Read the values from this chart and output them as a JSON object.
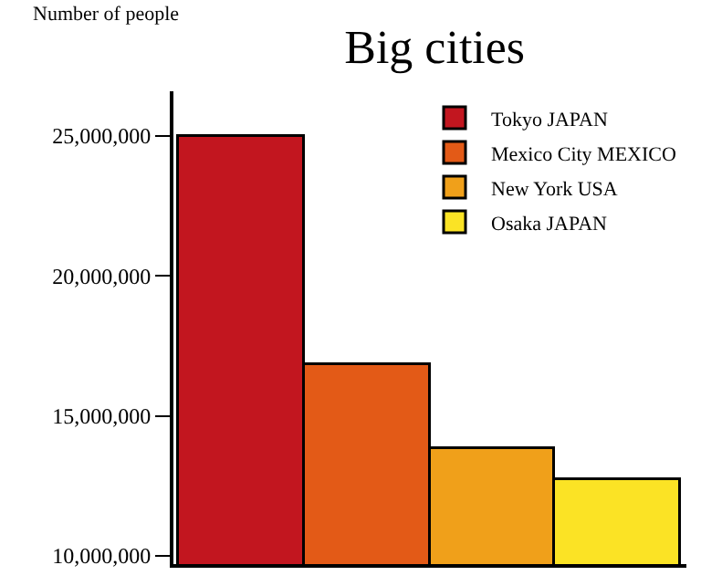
{
  "chart_data": {
    "type": "bar",
    "title": "Big cities",
    "ylabel": "Number of people",
    "categories": [
      null,
      null,
      null,
      null
    ],
    "series": [
      {
        "name": "Tokyo JAPAN",
        "color": "#c2161f",
        "values": [
          25000000,
          null,
          null,
          null
        ]
      },
      {
        "name": "Mexico City MEXICO",
        "color": "#e35a17",
        "values": [
          null,
          16800000,
          null,
          null
        ]
      },
      {
        "name": "New York USA",
        "color": "#f0a01a",
        "values": [
          null,
          null,
          13800000,
          null
        ]
      },
      {
        "name": "Osaka JAPAN",
        "color": "#fbe325",
        "values": [
          null,
          null,
          null,
          12700000
        ]
      }
    ],
    "ylim": [
      9700000,
      26600000
    ],
    "yticks": [
      {
        "value": 10000000,
        "label": "10,000,000"
      },
      {
        "value": 15000000,
        "label": "15,000,000"
      },
      {
        "value": 20000000,
        "label": "20,000,000"
      },
      {
        "value": 25000000,
        "label": "25,000,000"
      }
    ],
    "legend": "top right"
  }
}
